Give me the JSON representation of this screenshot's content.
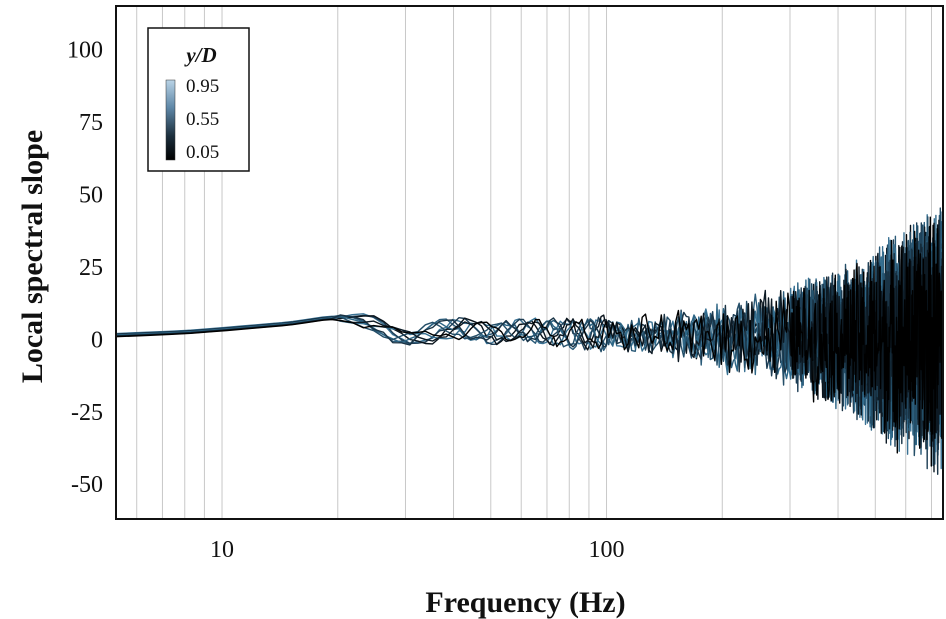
{
  "chart_data": {
    "type": "line",
    "xlabel": "Frequency (Hz)",
    "ylabel": "Local spectral slope",
    "xscale": "log",
    "xlim": [
      5.3,
      750
    ],
    "ylim": [
      -62,
      115
    ],
    "xticks": [
      10,
      100
    ],
    "xtick_labels": [
      "10",
      "100"
    ],
    "yticks": [
      100,
      75,
      50,
      25,
      0,
      -25,
      -50
    ],
    "ytick_labels": [
      "100",
      "75",
      "50",
      "25",
      "0",
      "-25",
      "-50"
    ],
    "grid": "vertical minor gridlines at each integer frequency decade step",
    "legend": {
      "title": "y/D",
      "placement": "top-left",
      "colorbar_labels": [
        "0.95",
        "0.55",
        "0.05"
      ],
      "colormap": [
        "#b9d3e6",
        "#5d86a6",
        "#1c2f3d",
        "#000000"
      ]
    },
    "series_colors": [
      "#000000",
      "#0d1a24",
      "#1a3446",
      "#244e68",
      "#2d6585",
      "#356f90",
      "#0a141c",
      "#1e3e55",
      "#2a5a78",
      "#3a7294"
    ],
    "envelope": {
      "description": "Family of series for y/D from 0.05 to 0.95; values approximate",
      "x": [
        5.3,
        8,
        10,
        15,
        19,
        22,
        25,
        30,
        40,
        50,
        60,
        80,
        100,
        150,
        200,
        300,
        400,
        500,
        600,
        700,
        750
      ],
      "mean": [
        1.5,
        2.5,
        3.5,
        5.5,
        7.5,
        7,
        5,
        0,
        4,
        2,
        3,
        2,
        2,
        1,
        1,
        1,
        0,
        0,
        0,
        0,
        0
      ],
      "amplitude": [
        0.2,
        0.3,
        0.4,
        0.6,
        1,
        2,
        3,
        3,
        4,
        4,
        4,
        5,
        6,
        9,
        13,
        19,
        26,
        34,
        42,
        48,
        52
      ]
    }
  }
}
